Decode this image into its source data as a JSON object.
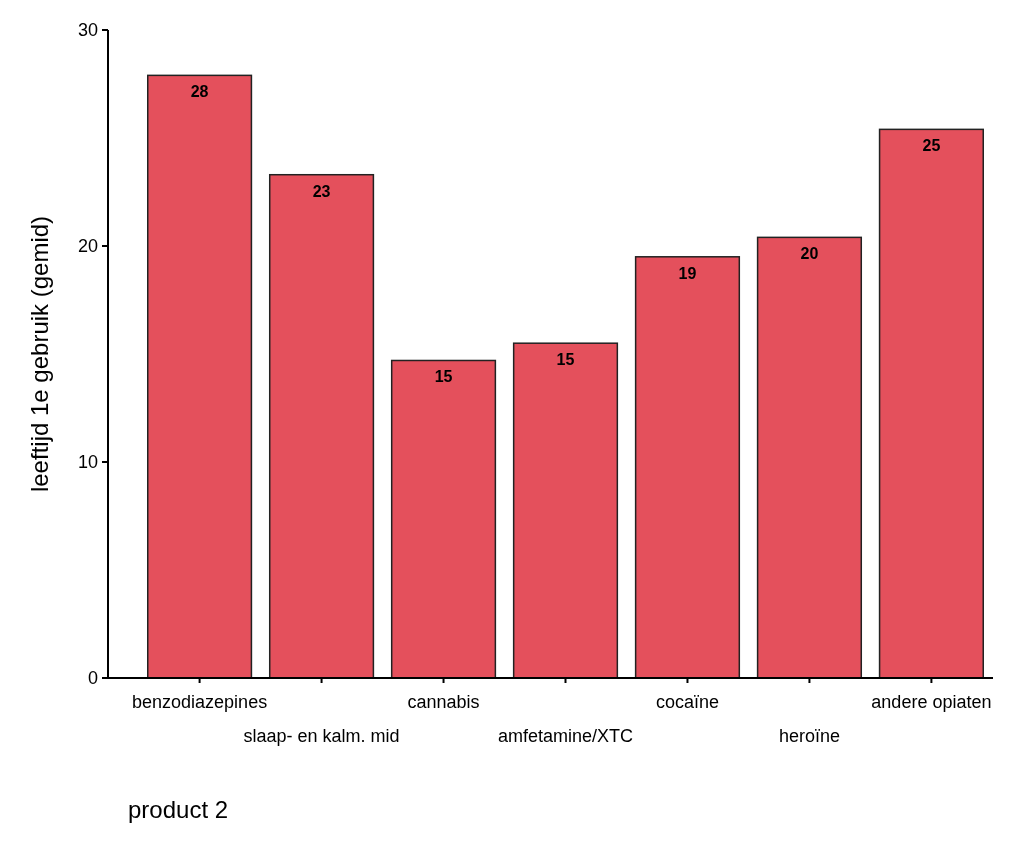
{
  "chart_data": {
    "type": "bar",
    "xlabel": "product 2",
    "ylabel": "leeftijd 1e gebruik (gemid)",
    "categories": [
      "benzodiazepines",
      "slaap- en kalm. mid",
      "cannabis",
      "amfetamine/XTC",
      "cocaïne",
      "heroïne",
      "andere opiaten"
    ],
    "values": [
      27.9,
      23.3,
      14.7,
      15.5,
      19.5,
      20.4,
      25.4
    ],
    "value_labels": [
      "28",
      "23",
      "15",
      "15",
      "19",
      "20",
      "25"
    ],
    "color": "#e4505c",
    "ylim": [
      0,
      30
    ],
    "yticks": [
      0,
      10,
      20,
      30
    ],
    "grid": false
  }
}
